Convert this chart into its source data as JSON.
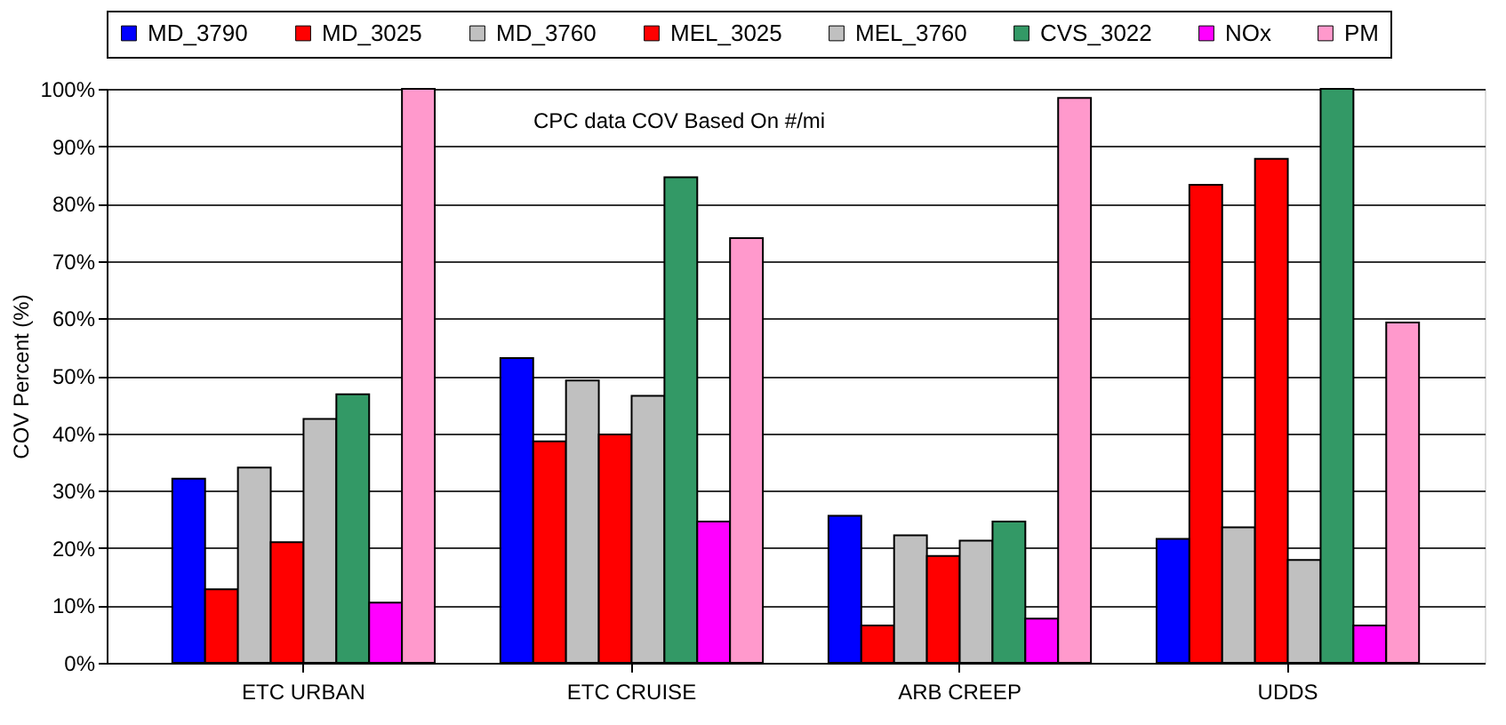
{
  "chart_data": {
    "type": "bar",
    "ylabel": "COV Percent (%)",
    "categories": [
      "ETC URBAN",
      "ETC CRUISE",
      "ARB CREEP",
      "UDDS"
    ],
    "series": [
      {
        "name": "MD_3790",
        "color": "#0000ff",
        "values": [
          32.1,
          53.1,
          25.6,
          21.6
        ]
      },
      {
        "name": "MD_3025",
        "color": "#ff0000",
        "values": [
          12.8,
          38.6,
          6.5,
          83.3
        ]
      },
      {
        "name": "MD_3760",
        "color": "#c0c0c0",
        "values": [
          34.0,
          49.2,
          22.2,
          23.6
        ]
      },
      {
        "name": "MEL_3025",
        "color": "#ff0000",
        "values": [
          21.0,
          39.8,
          18.6,
          87.8
        ]
      },
      {
        "name": "MEL_3760",
        "color": "#c0c0c0",
        "values": [
          42.5,
          46.5,
          21.3,
          17.9
        ]
      },
      {
        "name": "CVS_3022",
        "color": "#339966",
        "values": [
          46.8,
          84.6,
          24.6,
          100
        ]
      },
      {
        "name": "NOx",
        "color": "#ff00ff",
        "values": [
          10.5,
          24.6,
          7.7,
          6.5
        ]
      },
      {
        "name": "PM",
        "color": "#ff99cc",
        "values": [
          100,
          74.0,
          98.4,
          59.3
        ]
      }
    ],
    "ylim": [
      0,
      100
    ],
    "yticks": [
      {
        "value": 0,
        "label": "0%"
      },
      {
        "value": 10,
        "label": "10%"
      },
      {
        "value": 20,
        "label": "20%"
      },
      {
        "value": 30,
        "label": "30%"
      },
      {
        "value": 40,
        "label": "40%"
      },
      {
        "value": 50,
        "label": "50%"
      },
      {
        "value": 60,
        "label": "60%"
      },
      {
        "value": 70,
        "label": "70%"
      },
      {
        "value": 80,
        "label": "80%"
      },
      {
        "value": 90,
        "label": "90%"
      },
      {
        "value": 100,
        "label": "100%"
      }
    ],
    "annotations": [
      "CPC data COV Based On #/mi"
    ],
    "grid": "y",
    "legend": "top"
  }
}
